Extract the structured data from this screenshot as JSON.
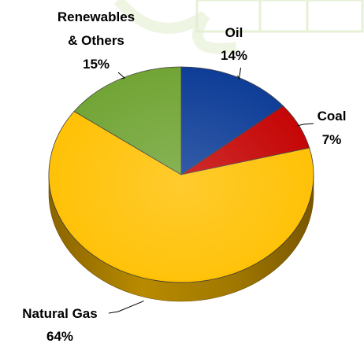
{
  "chart_data": {
    "type": "pie",
    "style": "3d",
    "title": "",
    "slices": [
      {
        "label": "Oil",
        "value": 14,
        "value_label": "14%",
        "color": "#0A3A96"
      },
      {
        "label": "Coal",
        "value": 7,
        "value_label": "7%",
        "color": "#C40000"
      },
      {
        "label": "Natural Gas",
        "value": 64,
        "value_label": "64%",
        "color": "#FFC000"
      },
      {
        "label": "Renewables & Others",
        "value": 15,
        "value_label": "15%",
        "color": "#6FA332"
      }
    ],
    "label_lines": [
      "Renewables",
      "& Others"
    ],
    "start": "top",
    "direction": "clockwise",
    "legend": "none",
    "data_labels": "outside-with-leader-lines"
  },
  "colors": {
    "background_tint": "#E9F3DC"
  }
}
